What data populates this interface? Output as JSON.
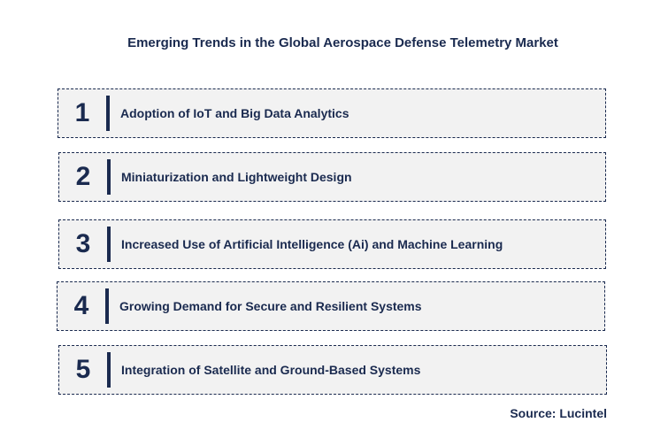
{
  "title": "Emerging Trends in the Global Aerospace Defense Telemetry Market",
  "trends": [
    {
      "number": "1",
      "label": "Adoption of IoT and Big Data Analytics"
    },
    {
      "number": "2",
      "label": "Miniaturization and Lightweight Design"
    },
    {
      "number": "3",
      "label": "Increased Use of Artificial  Intelligence (Ai)  and Machine Learning"
    },
    {
      "number": "4",
      "label": "Growing Demand for Secure and Resilient Systems"
    },
    {
      "number": "5",
      "label": "Integration of Satellite and Ground-Based Systems"
    }
  ],
  "source": "Source: Lucintel",
  "colors": {
    "text": "#1a2a4f",
    "box_background": "#f2f2f2",
    "border": "#1a2a4f"
  }
}
